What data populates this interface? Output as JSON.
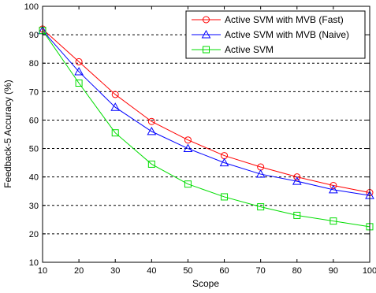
{
  "chart_data": {
    "type": "line",
    "xlabel": "Scope",
    "ylabel": "Feedback-5 Accuracy (%)",
    "xlim": [
      10,
      100
    ],
    "ylim": [
      10,
      100
    ],
    "xticks": [
      10,
      20,
      30,
      40,
      50,
      60,
      70,
      80,
      90,
      100
    ],
    "yticks": [
      10,
      20,
      30,
      40,
      50,
      60,
      70,
      80,
      90,
      100
    ],
    "grid": "horizontal dashed",
    "legend_position": "top-right",
    "x": [
      10,
      20,
      30,
      40,
      50,
      60,
      70,
      80,
      90,
      100
    ],
    "series": [
      {
        "name": "Active SVM with MVB (Fast)",
        "color": "#ff0000",
        "marker": "circle",
        "values": [
          92,
          80.5,
          69,
          59.5,
          53,
          47.5,
          43.5,
          40,
          37,
          34.5
        ]
      },
      {
        "name": "Active SVM with MVB (Naive)",
        "color": "#0000ff",
        "marker": "triangle",
        "values": [
          91.5,
          77,
          64.5,
          56,
          50,
          45,
          41,
          38.5,
          35.5,
          33.5
        ]
      },
      {
        "name": "Active SVM",
        "color": "#00dd00",
        "marker": "square",
        "values": [
          91.5,
          73,
          55.5,
          44.5,
          37.5,
          33,
          29.5,
          26.5,
          24.5,
          22.5
        ]
      }
    ]
  }
}
